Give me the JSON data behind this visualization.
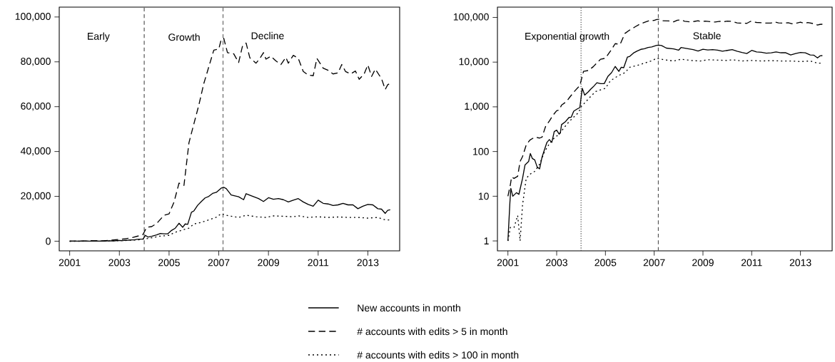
{
  "chart_data": [
    {
      "type": "line",
      "xlim": [
        2000.58,
        2014.28
      ],
      "ylim": [
        -4300,
        104400
      ],
      "xticks": [
        2001,
        2003,
        2005,
        2007,
        2009,
        2011,
        2013
      ],
      "yticks": [
        0,
        {
          "value": 20000,
          "label": "20,000"
        },
        {
          "value": 40000,
          "label": "40,000"
        },
        {
          "value": 60000,
          "label": "60,000"
        },
        {
          "value": 80000,
          "label": "80,000"
        },
        {
          "value": 100000,
          "label": "100,000"
        }
      ],
      "grid": false,
      "marker": "none",
      "legend": "bottom",
      "ref_lines": [
        {
          "axis": "x",
          "value": 2004,
          "color": "#555555",
          "line_style": "dashed"
        },
        {
          "axis": "x",
          "value": 2007.17,
          "color": "#555555",
          "line_style": "dashed"
        }
      ],
      "annotations": [
        "Early",
        "Growth",
        "Decline"
      ],
      "series": [
        {
          "name": "New accounts in month",
          "color": "#000000",
          "line_style": "solid",
          "x": [
            2001.0,
            2001.08,
            2001.12,
            2001.2,
            2001.35,
            2001.45,
            2001.6,
            2001.7,
            2001.85,
            2001.92,
            2002.0,
            2002.1,
            2002.2,
            2002.3,
            2002.4,
            2002.5,
            2002.6,
            2002.7,
            2002.8,
            2002.9,
            2003.0,
            2003.1,
            2003.15,
            2003.2,
            2003.35,
            2003.5,
            2003.6,
            2003.7,
            2003.85,
            2003.95,
            2004.05,
            2004.15,
            2004.3,
            2004.4,
            2004.5,
            2004.65,
            2004.8,
            2004.95,
            2005.1,
            2005.25,
            2005.4,
            2005.55,
            2005.65,
            2005.75,
            2005.9,
            2006.0,
            2006.15,
            2006.3,
            2006.45,
            2006.6,
            2006.75,
            2006.9,
            2007.1,
            2007.2,
            2007.3,
            2007.5,
            2007.8,
            2008.0,
            2008.1,
            2008.3,
            2008.6,
            2008.8,
            2009.0,
            2009.2,
            2009.4,
            2009.6,
            2009.8,
            2010.0,
            2010.2,
            2010.4,
            2010.6,
            2010.8,
            2011.0,
            2011.2,
            2011.4,
            2011.6,
            2011.8,
            2012.0,
            2012.2,
            2012.4,
            2012.6,
            2012.8,
            2013.0,
            2013.2,
            2013.4,
            2013.55,
            2013.7,
            2013.8,
            2013.9
          ],
          "values": [
            1,
            7,
            15,
            10,
            12,
            11,
            25,
            50,
            60,
            90,
            70,
            65,
            45,
            41,
            75,
            110,
            160,
            185,
            160,
            280,
            300,
            245,
            260,
            400,
            460,
            575,
            590,
            800,
            900,
            960,
            2600,
            1830,
            2170,
            2500,
            2800,
            3450,
            3300,
            3300,
            4800,
            5800,
            8000,
            6200,
            7700,
            7500,
            12900,
            13500,
            16000,
            17700,
            19300,
            20000,
            21300,
            21800,
            23700,
            24000,
            23500,
            20600,
            19800,
            18500,
            21200,
            20300,
            19000,
            17700,
            19400,
            18700,
            19000,
            18500,
            17500,
            18300,
            19000,
            17500,
            16400,
            15600,
            18300,
            16900,
            16600,
            15900,
            16200,
            16900,
            16200,
            16200,
            14500,
            15600,
            16400,
            16200,
            14500,
            14300,
            12400,
            13800,
            14000
          ]
        },
        {
          "name": "# accounts with edits > 5 in month",
          "color": "#000000",
          "line_style": "dashed",
          "x": [
            2001.0,
            2001.1,
            2001.15,
            2001.25,
            2001.4,
            2001.5,
            2001.6,
            2001.75,
            2001.9,
            2002.1,
            2002.3,
            2002.4,
            2002.55,
            2002.7,
            2002.85,
            2003.0,
            2003.1,
            2003.2,
            2003.4,
            2003.55,
            2003.75,
            2003.95,
            2004.1,
            2004.3,
            2004.5,
            2004.8,
            2005.0,
            2005.2,
            2005.4,
            2005.6,
            2005.8,
            2006.0,
            2006.2,
            2006.4,
            2006.6,
            2006.8,
            2007.0,
            2007.1,
            2007.2,
            2007.35,
            2007.6,
            2007.8,
            2007.95,
            2008.1,
            2008.25,
            2008.5,
            2008.65,
            2008.8,
            2008.9,
            2009.1,
            2009.3,
            2009.5,
            2009.7,
            2009.8,
            2010.0,
            2010.2,
            2010.4,
            2010.6,
            2010.8,
            2010.95,
            2011.2,
            2011.4,
            2011.6,
            2011.8,
            2011.95,
            2012.1,
            2012.3,
            2012.5,
            2012.65,
            2012.85,
            2013.0,
            2013.15,
            2013.3,
            2013.55,
            2013.7,
            2013.8,
            2013.9
          ],
          "values": [
            10,
            18,
            27,
            25,
            28,
            60,
            77,
            140,
            180,
            210,
            200,
            210,
            370,
            480,
            650,
            820,
            850,
            1090,
            1310,
            1680,
            2290,
            3000,
            6200,
            6500,
            7900,
            11600,
            12200,
            17500,
            25900,
            24900,
            43900,
            52400,
            60800,
            70400,
            77800,
            85200,
            85700,
            90000,
            90500,
            84100,
            83600,
            79700,
            86800,
            88400,
            81800,
            79400,
            81500,
            84100,
            81200,
            82500,
            80400,
            78800,
            82000,
            79400,
            82900,
            81500,
            75700,
            74100,
            73800,
            81500,
            77200,
            76200,
            74600,
            75100,
            78800,
            75700,
            74600,
            75900,
            72200,
            74600,
            78600,
            73500,
            76700,
            72500,
            67700,
            69800,
            70400
          ]
        },
        {
          "name": "# accounts with edits > 100 in month",
          "color": "#000000",
          "line_style": "dotted",
          "x": [
            2001.0,
            2001.1,
            2001.25,
            2001.4,
            2001.5,
            2001.6,
            2001.75,
            2001.9,
            2002.1,
            2002.3,
            2002.5,
            2002.7,
            2002.9,
            2003.1,
            2003.3,
            2003.5,
            2003.7,
            2003.9,
            2004.0,
            2004.2,
            2004.4,
            2004.6,
            2004.8,
            2005.0,
            2005.2,
            2005.4,
            2005.6,
            2005.8,
            2006.0,
            2006.3,
            2006.6,
            2006.9,
            2007.1,
            2007.4,
            2007.8,
            2008.1,
            2008.5,
            2008.9,
            2009.2,
            2009.6,
            2010.0,
            2010.2,
            2010.6,
            2011.0,
            2011.4,
            2011.8,
            2012.2,
            2012.6,
            2013.0,
            2013.4,
            2013.7,
            2013.9
          ],
          "values": [
            1,
            2,
            2,
            3.7,
            1,
            6.4,
            25,
            31,
            36,
            52,
            98,
            150,
            200,
            245,
            340,
            460,
            590,
            750,
            1000,
            1310,
            1720,
            2200,
            2400,
            2600,
            3800,
            4500,
            5200,
            5800,
            7700,
            8400,
            9500,
            10700,
            12300,
            11300,
            10600,
            11600,
            10900,
            10600,
            11300,
            11100,
            10900,
            11300,
            10600,
            10900,
            10600,
            10800,
            10600,
            10600,
            10300,
            10600,
            9500,
            9500
          ]
        }
      ]
    },
    {
      "type": "line",
      "log": "y",
      "xlim": [
        2000.57,
        2014.3
      ],
      "ylim": [
        0.6,
        170000
      ],
      "xticks": [
        2001,
        2003,
        2005,
        2007,
        2009,
        2011,
        2013
      ],
      "yticks": [
        1,
        10,
        100,
        {
          "value": 1000,
          "label": "1,000"
        },
        {
          "value": 10000,
          "label": "10,000"
        },
        {
          "value": 100000,
          "label": "100,000"
        }
      ],
      "grid": false,
      "marker": "none",
      "ref_lines": [
        {
          "axis": "x",
          "value": 2004,
          "color": "#555555",
          "line_style": "dotted"
        },
        {
          "axis": "x",
          "value": 2007.17,
          "color": "#555555",
          "line_style": "dashed"
        }
      ],
      "annotations": [
        "Exponential  growth",
        "Stable"
      ],
      "series": [
        {
          "color": "#000000",
          "line_style": "solid",
          "x": [
            2001.0,
            2001.08,
            2001.12,
            2001.2,
            2001.35,
            2001.45,
            2001.6,
            2001.7,
            2001.85,
            2001.92,
            2002.0,
            2002.1,
            2002.2,
            2002.3,
            2002.4,
            2002.5,
            2002.6,
            2002.7,
            2002.8,
            2002.9,
            2003.0,
            2003.1,
            2003.15,
            2003.2,
            2003.35,
            2003.5,
            2003.6,
            2003.7,
            2003.85,
            2003.95,
            2004.05,
            2004.15,
            2004.3,
            2004.4,
            2004.5,
            2004.65,
            2004.8,
            2004.95,
            2005.1,
            2005.25,
            2005.4,
            2005.55,
            2005.65,
            2005.75,
            2005.9,
            2006.0,
            2006.15,
            2006.3,
            2006.45,
            2006.6,
            2006.75,
            2006.9,
            2007.1,
            2007.2,
            2007.3,
            2007.5,
            2007.8,
            2008.0,
            2008.1,
            2008.3,
            2008.6,
            2008.8,
            2009.0,
            2009.2,
            2009.4,
            2009.6,
            2009.8,
            2010.0,
            2010.2,
            2010.4,
            2010.6,
            2010.8,
            2011.0,
            2011.2,
            2011.4,
            2011.6,
            2011.8,
            2012.0,
            2012.2,
            2012.4,
            2012.6,
            2012.8,
            2013.0,
            2013.2,
            2013.4,
            2013.55,
            2013.7,
            2013.8,
            2013.9
          ],
          "values": [
            1,
            7,
            15,
            10,
            12,
            11,
            25,
            50,
            60,
            90,
            70,
            65,
            45,
            41,
            75,
            110,
            160,
            185,
            160,
            280,
            300,
            245,
            260,
            400,
            460,
            575,
            590,
            800,
            900,
            960,
            2600,
            1830,
            2170,
            2500,
            2800,
            3450,
            3300,
            3300,
            4800,
            5800,
            8000,
            6200,
            7700,
            7500,
            12900,
            13500,
            16000,
            17700,
            19300,
            20000,
            21300,
            21800,
            23700,
            24000,
            23500,
            20600,
            19800,
            18500,
            21200,
            20300,
            19000,
            17700,
            19400,
            18700,
            19000,
            18500,
            17500,
            18300,
            19000,
            17500,
            16400,
            15600,
            18300,
            16900,
            16600,
            15900,
            16200,
            16900,
            16200,
            16200,
            14500,
            15600,
            16400,
            16200,
            14500,
            14300,
            12400,
            13800,
            14000
          ]
        },
        {
          "color": "#000000",
          "line_style": "dashed",
          "x": [
            2001.0,
            2001.1,
            2001.15,
            2001.25,
            2001.4,
            2001.5,
            2001.6,
            2001.75,
            2001.9,
            2002.1,
            2002.3,
            2002.4,
            2002.55,
            2002.7,
            2002.85,
            2003.0,
            2003.1,
            2003.2,
            2003.4,
            2003.55,
            2003.75,
            2003.95,
            2004.1,
            2004.3,
            2004.5,
            2004.8,
            2005.0,
            2005.2,
            2005.4,
            2005.6,
            2005.8,
            2006.0,
            2006.2,
            2006.4,
            2006.6,
            2006.8,
            2007.0,
            2007.1,
            2007.2,
            2007.35,
            2007.6,
            2007.8,
            2007.95,
            2008.1,
            2008.25,
            2008.5,
            2008.65,
            2008.8,
            2008.9,
            2009.1,
            2009.3,
            2009.5,
            2009.7,
            2009.8,
            2010.0,
            2010.2,
            2010.4,
            2010.6,
            2010.8,
            2010.95,
            2011.2,
            2011.4,
            2011.6,
            2011.8,
            2011.95,
            2012.1,
            2012.3,
            2012.5,
            2012.65,
            2012.85,
            2013.0,
            2013.15,
            2013.3,
            2013.55,
            2013.7,
            2013.8,
            2013.9
          ],
          "values": [
            10,
            18,
            27,
            25,
            28,
            60,
            77,
            140,
            180,
            210,
            200,
            210,
            370,
            480,
            650,
            820,
            850,
            1090,
            1310,
            1680,
            2290,
            3000,
            6200,
            6500,
            7900,
            11600,
            12200,
            17500,
            25900,
            24900,
            43900,
            52400,
            60800,
            70400,
            77800,
            85200,
            85700,
            90000,
            90500,
            84100,
            83600,
            79700,
            86800,
            88400,
            81800,
            79400,
            81500,
            84100,
            81200,
            82500,
            80400,
            78800,
            82000,
            79400,
            82900,
            81500,
            75700,
            74100,
            73800,
            81500,
            77200,
            76200,
            74600,
            75100,
            78800,
            75700,
            74600,
            75900,
            72200,
            74600,
            78600,
            73500,
            76700,
            72500,
            67700,
            69800,
            70400
          ]
        },
        {
          "color": "#000000",
          "line_style": "dotted",
          "x": [
            2001.0,
            2001.1,
            2001.25,
            2001.4,
            2001.5,
            2001.6,
            2001.75,
            2001.9,
            2002.1,
            2002.3,
            2002.5,
            2002.7,
            2002.9,
            2003.1,
            2003.3,
            2003.5,
            2003.7,
            2003.9,
            2004.0,
            2004.2,
            2004.4,
            2004.6,
            2004.8,
            2005.0,
            2005.2,
            2005.4,
            2005.6,
            2005.8,
            2006.0,
            2006.3,
            2006.6,
            2006.9,
            2007.1,
            2007.4,
            2007.8,
            2008.1,
            2008.5,
            2008.9,
            2009.2,
            2009.6,
            2010.0,
            2010.2,
            2010.6,
            2011.0,
            2011.4,
            2011.8,
            2012.2,
            2012.6,
            2013.0,
            2013.4,
            2013.7,
            2013.9
          ],
          "values": [
            1,
            2,
            2,
            3.7,
            1,
            6.4,
            25,
            31,
            36,
            52,
            98,
            150,
            200,
            245,
            340,
            460,
            590,
            750,
            1000,
            1310,
            1720,
            2200,
            2400,
            2600,
            3800,
            4500,
            5200,
            5800,
            7700,
            8400,
            9500,
            10700,
            12300,
            11300,
            10600,
            11600,
            10900,
            10600,
            11300,
            11100,
            10900,
            11300,
            10600,
            10900,
            10600,
            10800,
            10600,
            10600,
            10300,
            10600,
            9500,
            9500
          ]
        }
      ]
    }
  ]
}
